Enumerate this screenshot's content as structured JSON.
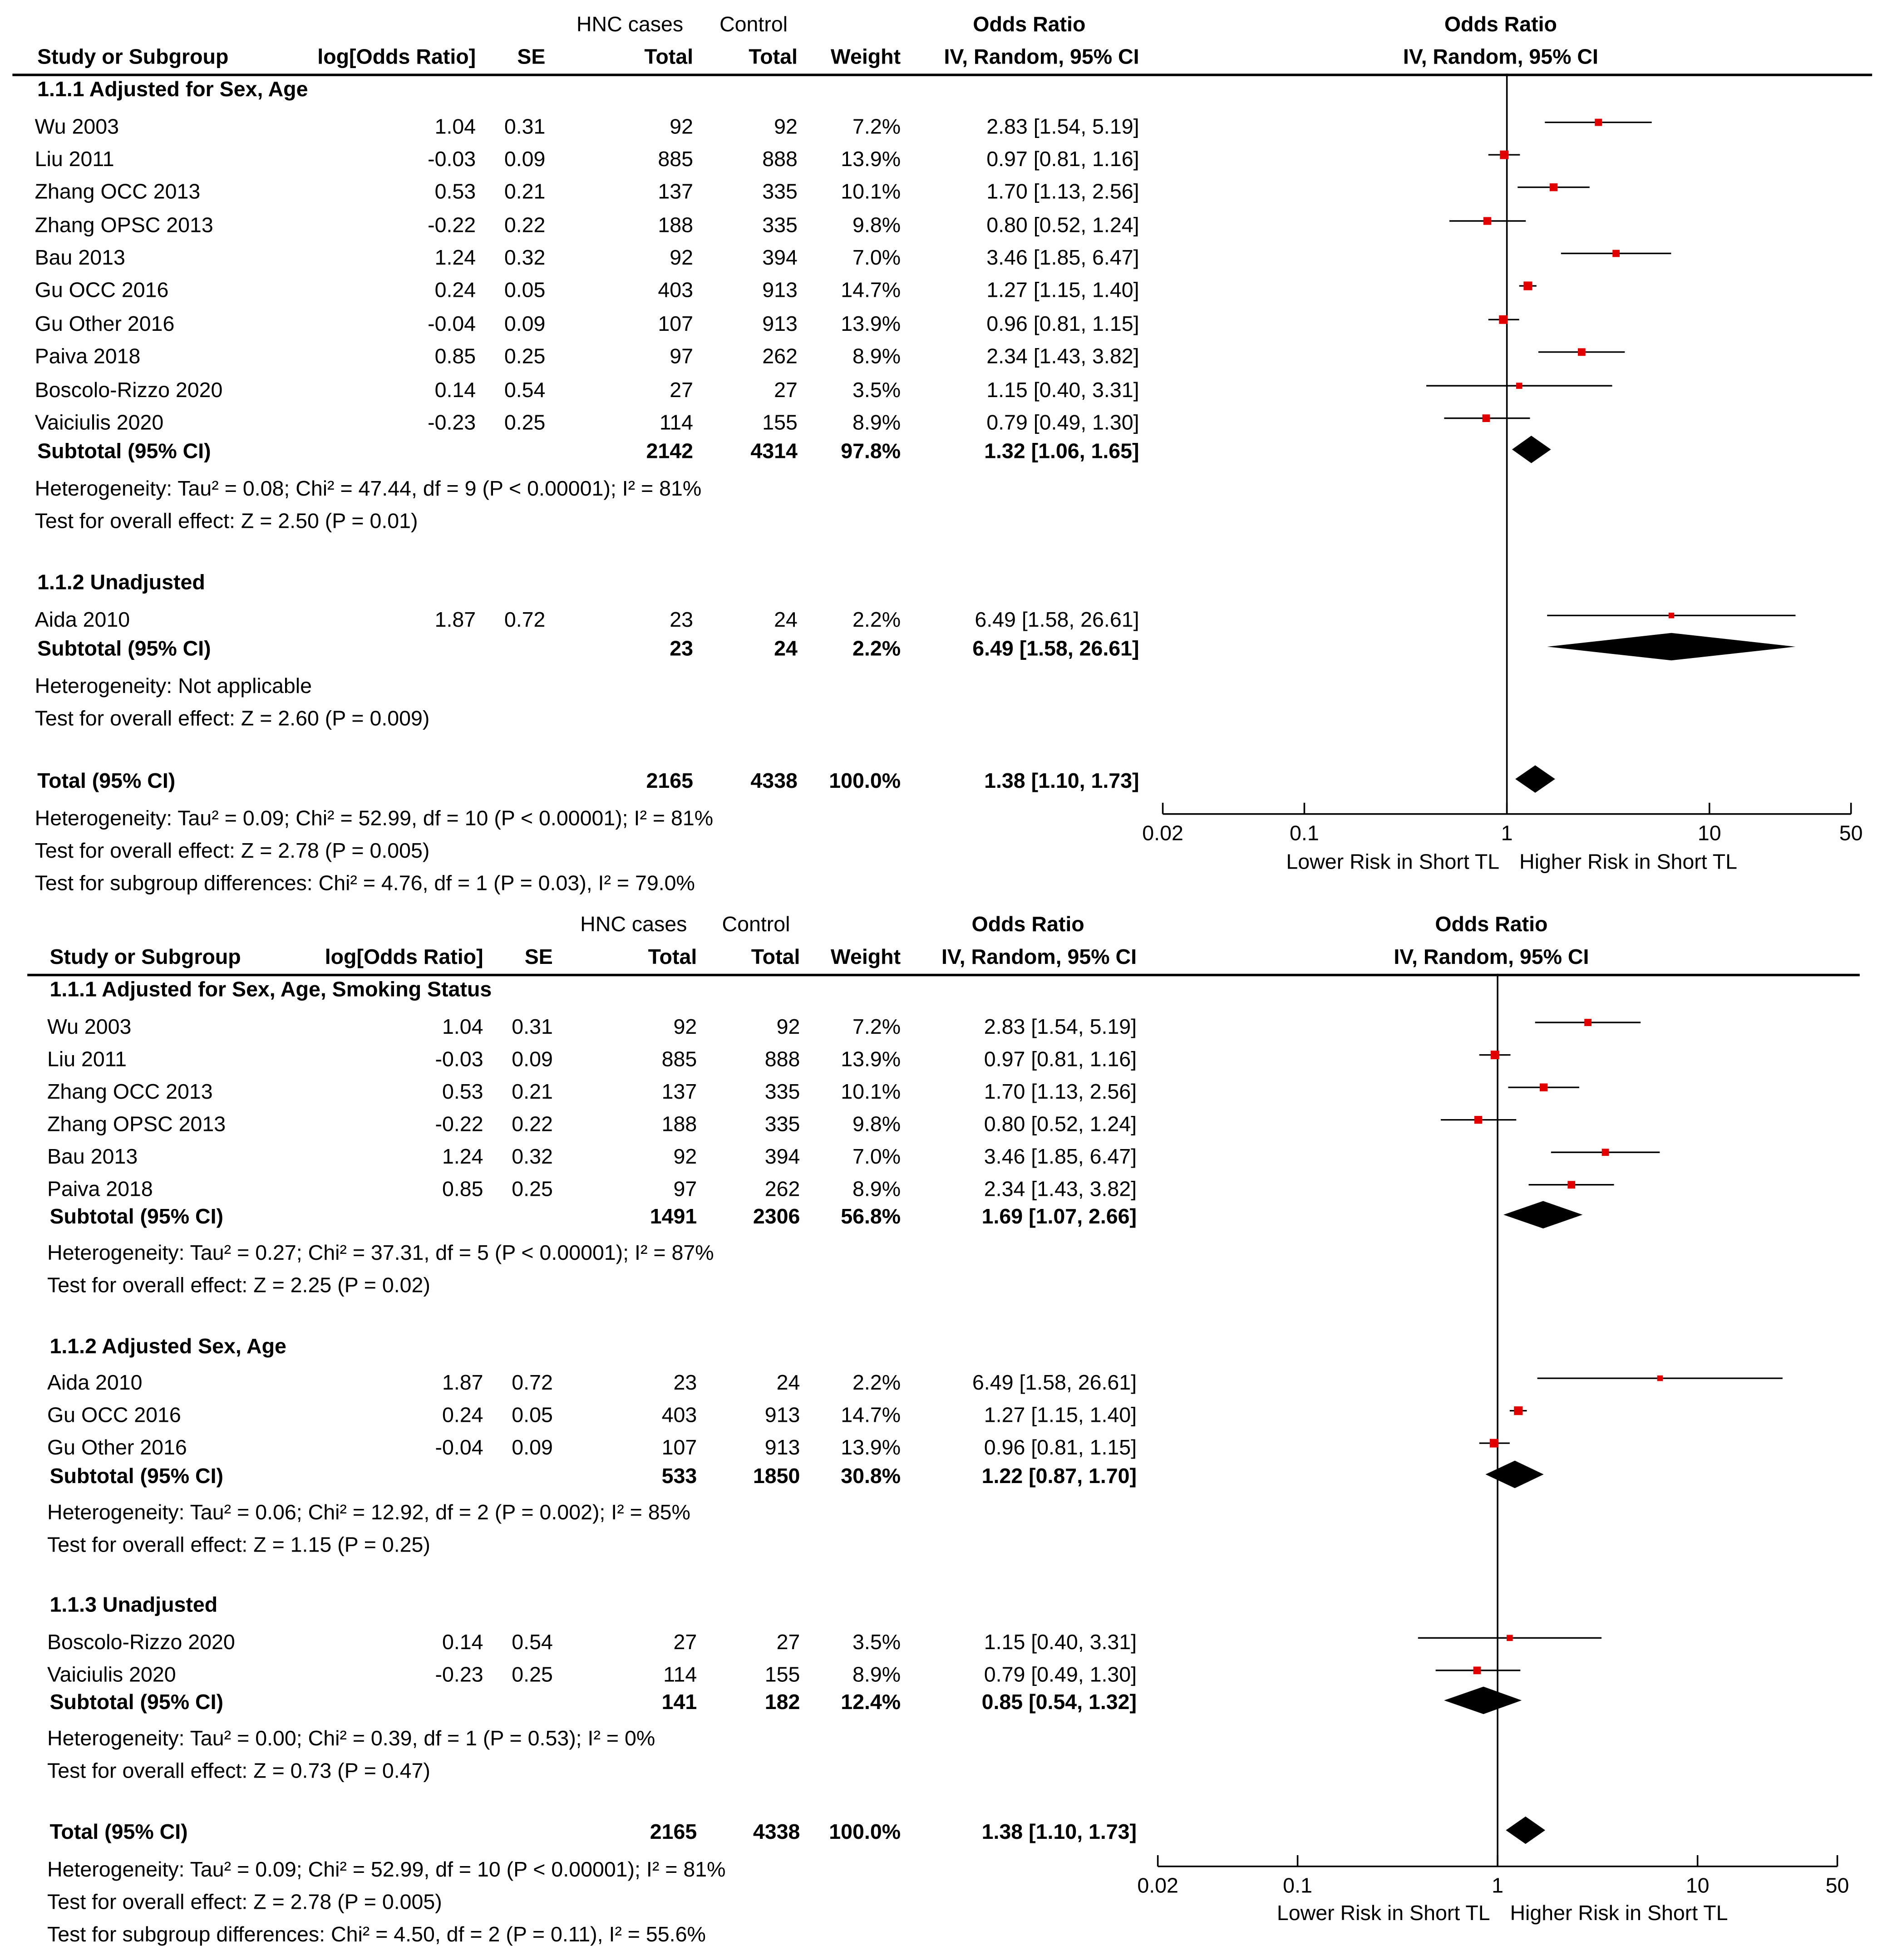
{
  "panels": [
    {
      "header": {
        "col_study": "Study or Subgroup",
        "col_logor": "log[Odds Ratio]",
        "col_se": "SE",
        "hnc_group": "HNC cases",
        "control_group": "Control",
        "col_total1": "Total",
        "col_total2": "Total",
        "col_weight": "Weight",
        "or_label": "Odds Ratio",
        "or_method": "IV, Random, 95% CI",
        "plot_label": "Odds Ratio",
        "plot_method": "IV, Random, 95% CI"
      },
      "subgroups": [
        {
          "title": "1.1.1 Adjusted for Sex, Age",
          "studies": [
            {
              "name": "Wu 2003",
              "logor": "1.04",
              "se": "0.31",
              "cases": "92",
              "control": "92",
              "weight": "7.2%",
              "ci_text": "2.83 [1.54, 5.19]",
              "or": 2.83,
              "lo": 1.54,
              "hi": 5.19
            },
            {
              "name": "Liu 2011",
              "logor": "-0.03",
              "se": "0.09",
              "cases": "885",
              "control": "888",
              "weight": "13.9%",
              "ci_text": "0.97 [0.81, 1.16]",
              "or": 0.97,
              "lo": 0.81,
              "hi": 1.16
            },
            {
              "name": "Zhang OCC 2013",
              "logor": "0.53",
              "se": "0.21",
              "cases": "137",
              "control": "335",
              "weight": "10.1%",
              "ci_text": "1.70 [1.13, 2.56]",
              "or": 1.7,
              "lo": 1.13,
              "hi": 2.56
            },
            {
              "name": "Zhang OPSC 2013",
              "logor": "-0.22",
              "se": "0.22",
              "cases": "188",
              "control": "335",
              "weight": "9.8%",
              "ci_text": "0.80 [0.52, 1.24]",
              "or": 0.8,
              "lo": 0.52,
              "hi": 1.24
            },
            {
              "name": "Bau 2013",
              "logor": "1.24",
              "se": "0.32",
              "cases": "92",
              "control": "394",
              "weight": "7.0%",
              "ci_text": "3.46 [1.85, 6.47]",
              "or": 3.46,
              "lo": 1.85,
              "hi": 6.47
            },
            {
              "name": "Gu OCC 2016",
              "logor": "0.24",
              "se": "0.05",
              "cases": "403",
              "control": "913",
              "weight": "14.7%",
              "ci_text": "1.27 [1.15, 1.40]",
              "or": 1.27,
              "lo": 1.15,
              "hi": 1.4
            },
            {
              "name": "Gu Other 2016",
              "logor": "-0.04",
              "se": "0.09",
              "cases": "107",
              "control": "913",
              "weight": "13.9%",
              "ci_text": "0.96 [0.81, 1.15]",
              "or": 0.96,
              "lo": 0.81,
              "hi": 1.15
            },
            {
              "name": "Paiva 2018",
              "logor": "0.85",
              "se": "0.25",
              "cases": "97",
              "control": "262",
              "weight": "8.9%",
              "ci_text": "2.34 [1.43, 3.82]",
              "or": 2.34,
              "lo": 1.43,
              "hi": 3.82
            },
            {
              "name": "Boscolo-Rizzo 2020",
              "logor": "0.14",
              "se": "0.54",
              "cases": "27",
              "control": "27",
              "weight": "3.5%",
              "ci_text": "1.15 [0.40, 3.31]",
              "or": 1.15,
              "lo": 0.4,
              "hi": 3.31
            },
            {
              "name": "Vaiciulis 2020",
              "logor": "-0.23",
              "se": "0.25",
              "cases": "114",
              "control": "155",
              "weight": "8.9%",
              "ci_text": "0.79 [0.49, 1.30]",
              "or": 0.79,
              "lo": 0.49,
              "hi": 1.3
            }
          ],
          "subtotal": {
            "label": "Subtotal (95% CI)",
            "cases": "2142",
            "control": "4314",
            "weight": "97.8%",
            "ci_text": "1.32 [1.06, 1.65]",
            "or": 1.32,
            "lo": 1.06,
            "hi": 1.65
          },
          "heterogeneity": "Heterogeneity: Tau² = 0.08; Chi² = 47.44, df = 9 (P < 0.00001); I² = 81%",
          "overall": "Test for overall effect: Z = 2.50 (P = 0.01)"
        },
        {
          "title": "1.1.2 Unadjusted",
          "studies": [
            {
              "name": "Aida 2010",
              "logor": "1.87",
              "se": "0.72",
              "cases": "23",
              "control": "24",
              "weight": "2.2%",
              "ci_text": "6.49 [1.58, 26.61]",
              "or": 6.49,
              "lo": 1.58,
              "hi": 26.61
            }
          ],
          "subtotal": {
            "label": "Subtotal (95% CI)",
            "cases": "23",
            "control": "24",
            "weight": "2.2%",
            "ci_text": "6.49 [1.58, 26.61]",
            "or": 6.49,
            "lo": 1.58,
            "hi": 26.61
          },
          "heterogeneity": "Heterogeneity: Not applicable",
          "overall": "Test for overall effect: Z = 2.60 (P = 0.009)"
        }
      ],
      "total": {
        "label": "Total (95% CI)",
        "cases": "2165",
        "control": "4338",
        "weight": "100.0%",
        "ci_text": "1.38 [1.10, 1.73]",
        "or": 1.38,
        "lo": 1.1,
        "hi": 1.73
      },
      "total_heterogeneity": "Heterogeneity: Tau² = 0.09; Chi² = 52.99, df = 10 (P < 0.00001); I² = 81%",
      "total_overall": "Test for overall effect: Z = 2.78 (P = 0.005)",
      "subgroup_diff": "Test for subgroup differences: Chi² = 4.76, df = 1 (P = 0.03), I² = 79.0%",
      "axis": {
        "ticks": [
          "0.02",
          "0.1",
          "1",
          "10",
          "50"
        ],
        "left_label": "Lower Risk in Short TL",
        "right_label": "Higher Risk in Short TL"
      }
    },
    {
      "header": {
        "col_study": "Study or Subgroup",
        "col_logor": "log[Odds Ratio]",
        "col_se": "SE",
        "hnc_group": "HNC cases",
        "control_group": "Control",
        "col_total1": "Total",
        "col_total2": "Total",
        "col_weight": "Weight",
        "or_label": "Odds Ratio",
        "or_method": "IV, Random, 95% CI",
        "plot_label": "Odds Ratio",
        "plot_method": "IV, Random, 95% CI"
      },
      "subgroups": [
        {
          "title": "1.1.1 Adjusted for Sex, Age, Smoking Status",
          "studies": [
            {
              "name": "Wu 2003",
              "logor": "1.04",
              "se": "0.31",
              "cases": "92",
              "control": "92",
              "weight": "7.2%",
              "ci_text": "2.83 [1.54, 5.19]",
              "or": 2.83,
              "lo": 1.54,
              "hi": 5.19
            },
            {
              "name": "Liu 2011",
              "logor": "-0.03",
              "se": "0.09",
              "cases": "885",
              "control": "888",
              "weight": "13.9%",
              "ci_text": "0.97 [0.81, 1.16]",
              "or": 0.97,
              "lo": 0.81,
              "hi": 1.16
            },
            {
              "name": "Zhang OCC 2013",
              "logor": "0.53",
              "se": "0.21",
              "cases": "137",
              "control": "335",
              "weight": "10.1%",
              "ci_text": "1.70 [1.13, 2.56]",
              "or": 1.7,
              "lo": 1.13,
              "hi": 2.56
            },
            {
              "name": "Zhang OPSC 2013",
              "logor": "-0.22",
              "se": "0.22",
              "cases": "188",
              "control": "335",
              "weight": "9.8%",
              "ci_text": "0.80 [0.52, 1.24]",
              "or": 0.8,
              "lo": 0.52,
              "hi": 1.24
            },
            {
              "name": "Bau 2013",
              "logor": "1.24",
              "se": "0.32",
              "cases": "92",
              "control": "394",
              "weight": "7.0%",
              "ci_text": "3.46 [1.85, 6.47]",
              "or": 3.46,
              "lo": 1.85,
              "hi": 6.47
            },
            {
              "name": "Paiva 2018",
              "logor": "0.85",
              "se": "0.25",
              "cases": "97",
              "control": "262",
              "weight": "8.9%",
              "ci_text": "2.34 [1.43, 3.82]",
              "or": 2.34,
              "lo": 1.43,
              "hi": 3.82
            }
          ],
          "subtotal": {
            "label": "Subtotal (95% CI)",
            "cases": "1491",
            "control": "2306",
            "weight": "56.8%",
            "ci_text": "1.69 [1.07, 2.66]",
            "or": 1.69,
            "lo": 1.07,
            "hi": 2.66
          },
          "heterogeneity": "Heterogeneity: Tau² = 0.27; Chi² = 37.31, df = 5 (P < 0.00001); I² = 87%",
          "overall": "Test for overall effect: Z = 2.25 (P = 0.02)"
        },
        {
          "title": "1.1.2 Adjusted Sex, Age",
          "studies": [
            {
              "name": "Aida 2010",
              "logor": "1.87",
              "se": "0.72",
              "cases": "23",
              "control": "24",
              "weight": "2.2%",
              "ci_text": "6.49 [1.58, 26.61]",
              "or": 6.49,
              "lo": 1.58,
              "hi": 26.61
            },
            {
              "name": "Gu OCC 2016",
              "logor": "0.24",
              "se": "0.05",
              "cases": "403",
              "control": "913",
              "weight": "14.7%",
              "ci_text": "1.27 [1.15, 1.40]",
              "or": 1.27,
              "lo": 1.15,
              "hi": 1.4
            },
            {
              "name": "Gu Other 2016",
              "logor": "-0.04",
              "se": "0.09",
              "cases": "107",
              "control": "913",
              "weight": "13.9%",
              "ci_text": "0.96 [0.81, 1.15]",
              "or": 0.96,
              "lo": 0.81,
              "hi": 1.15
            }
          ],
          "subtotal": {
            "label": "Subtotal (95% CI)",
            "cases": "533",
            "control": "1850",
            "weight": "30.8%",
            "ci_text": "1.22 [0.87, 1.70]",
            "or": 1.22,
            "lo": 0.87,
            "hi": 1.7
          },
          "heterogeneity": "Heterogeneity: Tau² = 0.06; Chi² = 12.92, df = 2 (P = 0.002); I² = 85%",
          "overall": "Test for overall effect: Z = 1.15 (P = 0.25)"
        },
        {
          "title": "1.1.3 Unadjusted",
          "studies": [
            {
              "name": "Boscolo-Rizzo 2020",
              "logor": "0.14",
              "se": "0.54",
              "cases": "27",
              "control": "27",
              "weight": "3.5%",
              "ci_text": "1.15 [0.40, 3.31]",
              "or": 1.15,
              "lo": 0.4,
              "hi": 3.31
            },
            {
              "name": "Vaiciulis 2020",
              "logor": "-0.23",
              "se": "0.25",
              "cases": "114",
              "control": "155",
              "weight": "8.9%",
              "ci_text": "0.79 [0.49, 1.30]",
              "or": 0.79,
              "lo": 0.49,
              "hi": 1.3
            }
          ],
          "subtotal": {
            "label": "Subtotal (95% CI)",
            "cases": "141",
            "control": "182",
            "weight": "12.4%",
            "ci_text": "0.85 [0.54, 1.32]",
            "or": 0.85,
            "lo": 0.54,
            "hi": 1.32
          },
          "heterogeneity": "Heterogeneity: Tau² = 0.00; Chi² = 0.39, df = 1 (P = 0.53); I² = 0%",
          "overall": "Test for overall effect: Z = 0.73 (P = 0.47)"
        }
      ],
      "total": {
        "label": "Total (95% CI)",
        "cases": "2165",
        "control": "4338",
        "weight": "100.0%",
        "ci_text": "1.38 [1.10, 1.73]",
        "or": 1.38,
        "lo": 1.1,
        "hi": 1.73
      },
      "total_heterogeneity": "Heterogeneity: Tau² = 0.09; Chi² = 52.99, df = 10 (P < 0.00001); I² = 81%",
      "total_overall": "Test for overall effect: Z = 2.78 (P = 0.005)",
      "subgroup_diff": "Test for subgroup differences: Chi² = 4.50, df = 2 (P = 0.11), I² = 55.6%",
      "axis": {
        "ticks": [
          "0.02",
          "0.1",
          "1",
          "10",
          "50"
        ],
        "left_label": "Lower Risk in Short TL",
        "right_label": "Higher Risk in Short TL"
      }
    }
  ],
  "chart_data": [
    {
      "type": "forest",
      "title": "Odds Ratio IV, Random, 95% CI",
      "xscale": "log",
      "xlim": [
        0.02,
        50
      ],
      "xticks": [
        0.02,
        0.1,
        1,
        10,
        50
      ],
      "xlabel_left": "Lower Risk in Short TL",
      "xlabel_right": "Higher Risk in Short TL",
      "series": [
        {
          "group": "1.1.1 Adjusted for Sex, Age",
          "studies": [
            "Wu 2003",
            "Liu 2011",
            "Zhang OCC 2013",
            "Zhang OPSC 2013",
            "Bau 2013",
            "Gu OCC 2016",
            "Gu Other 2016",
            "Paiva 2018",
            "Boscolo-Rizzo 2020",
            "Vaiciulis 2020"
          ],
          "or": [
            2.83,
            0.97,
            1.7,
            0.8,
            3.46,
            1.27,
            0.96,
            2.34,
            1.15,
            0.79
          ],
          "subtotal": [
            1.32,
            1.06,
            1.65
          ]
        },
        {
          "group": "1.1.2 Unadjusted",
          "studies": [
            "Aida 2010"
          ],
          "or": [
            6.49
          ],
          "subtotal": [
            6.49,
            1.58,
            26.61
          ]
        }
      ],
      "total": [
        1.38,
        1.1,
        1.73
      ]
    },
    {
      "type": "forest",
      "title": "Odds Ratio IV, Random, 95% CI",
      "xscale": "log",
      "xlim": [
        0.02,
        50
      ],
      "xticks": [
        0.02,
        0.1,
        1,
        10,
        50
      ],
      "xlabel_left": "Lower Risk in Short TL",
      "xlabel_right": "Higher Risk in Short TL",
      "series": [
        {
          "group": "1.1.1 Adjusted for Sex, Age, Smoking Status",
          "studies": [
            "Wu 2003",
            "Liu 2011",
            "Zhang OCC 2013",
            "Zhang OPSC 2013",
            "Bau 2013",
            "Paiva 2018"
          ],
          "or": [
            2.83,
            0.97,
            1.7,
            0.8,
            3.46,
            2.34
          ],
          "subtotal": [
            1.69,
            1.07,
            2.66
          ]
        },
        {
          "group": "1.1.2 Adjusted Sex, Age",
          "studies": [
            "Aida 2010",
            "Gu OCC 2016",
            "Gu Other 2016"
          ],
          "or": [
            6.49,
            1.27,
            0.96
          ],
          "subtotal": [
            1.22,
            0.87,
            1.7
          ]
        },
        {
          "group": "1.1.3 Unadjusted",
          "studies": [
            "Boscolo-Rizzo 2020",
            "Vaiciulis 2020"
          ],
          "or": [
            1.15,
            0.79
          ],
          "subtotal": [
            0.85,
            0.54,
            1.32
          ]
        }
      ],
      "total": [
        1.38,
        1.1,
        1.73
      ]
    }
  ],
  "colors": {
    "point": "#e00000",
    "ink": "#000000",
    "background": "#ffffff"
  }
}
